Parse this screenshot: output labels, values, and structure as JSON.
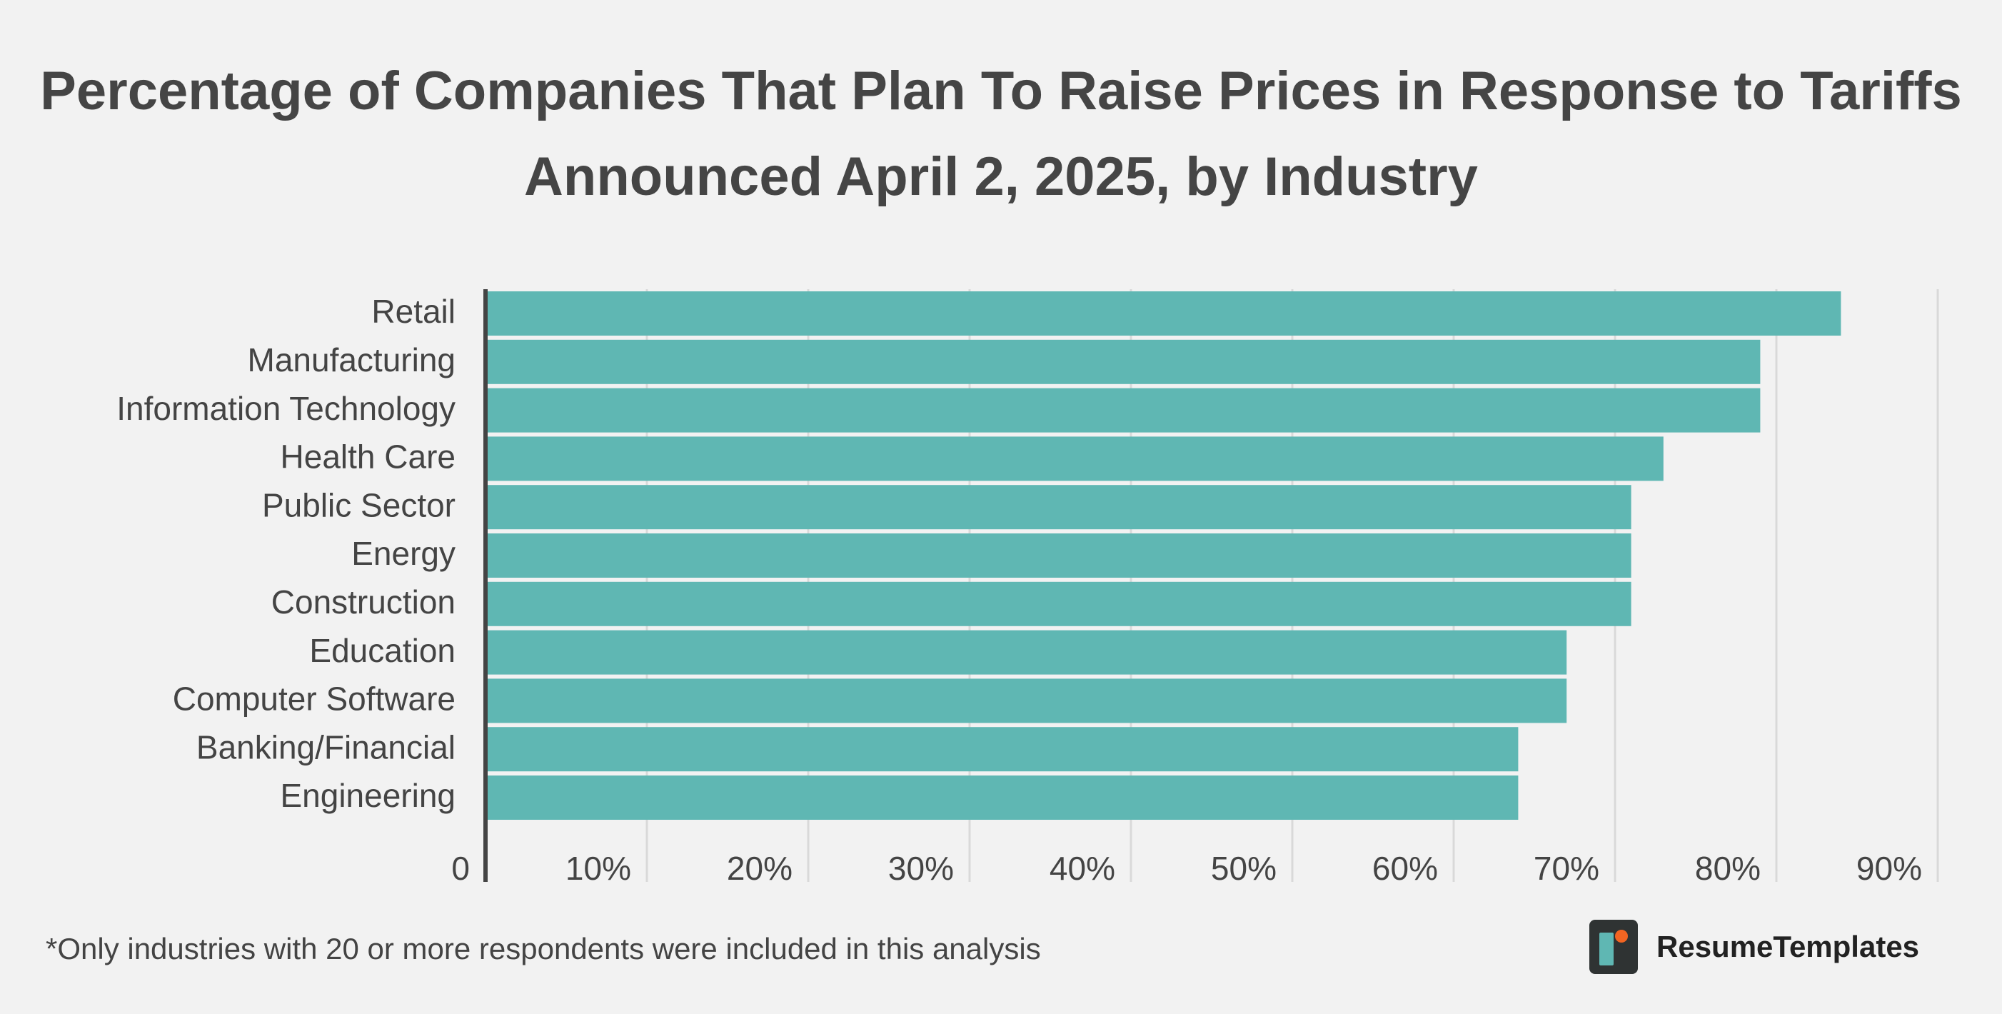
{
  "header": {
    "title_line1": "Percentage of Companies That Plan To Raise Prices in Response to Tariffs",
    "title_line2": "Announced April 2, 2025, by Industry"
  },
  "chart_data": {
    "type": "bar",
    "orientation": "horizontal",
    "categories": [
      "Retail",
      "Manufacturing",
      "Information Technology",
      "Health Care",
      "Public Sector",
      "Energy",
      "Construction",
      "Education",
      "Computer Software",
      "Banking/Financial",
      "Engineering"
    ],
    "values": [
      84,
      79,
      79,
      73,
      71,
      71,
      71,
      67,
      67,
      64,
      64
    ],
    "xlim": [
      0,
      90
    ],
    "xticks": [
      0,
      10,
      20,
      30,
      40,
      50,
      60,
      70,
      80,
      90
    ],
    "xtick_labels": [
      "0",
      "10%",
      "20%",
      "30%",
      "40%",
      "50%",
      "60%",
      "70%",
      "80%",
      "90%"
    ],
    "grid": "vertical",
    "legend": "none",
    "bar_color": "#5fb7b3"
  },
  "footnote": "*Only industries with 20 or more respondents were included in this analysis",
  "brand": {
    "name": "ResumeTemplates",
    "logo_icon": "resume-templates-logo-icon"
  },
  "colors": {
    "background": "#f2f2f2",
    "bar": "#5fb7b3",
    "grid": "#d9d9d9",
    "axis": "#444444",
    "text": "#444444",
    "logo_bg": "#2f3333",
    "logo_dot": "#f26522"
  }
}
